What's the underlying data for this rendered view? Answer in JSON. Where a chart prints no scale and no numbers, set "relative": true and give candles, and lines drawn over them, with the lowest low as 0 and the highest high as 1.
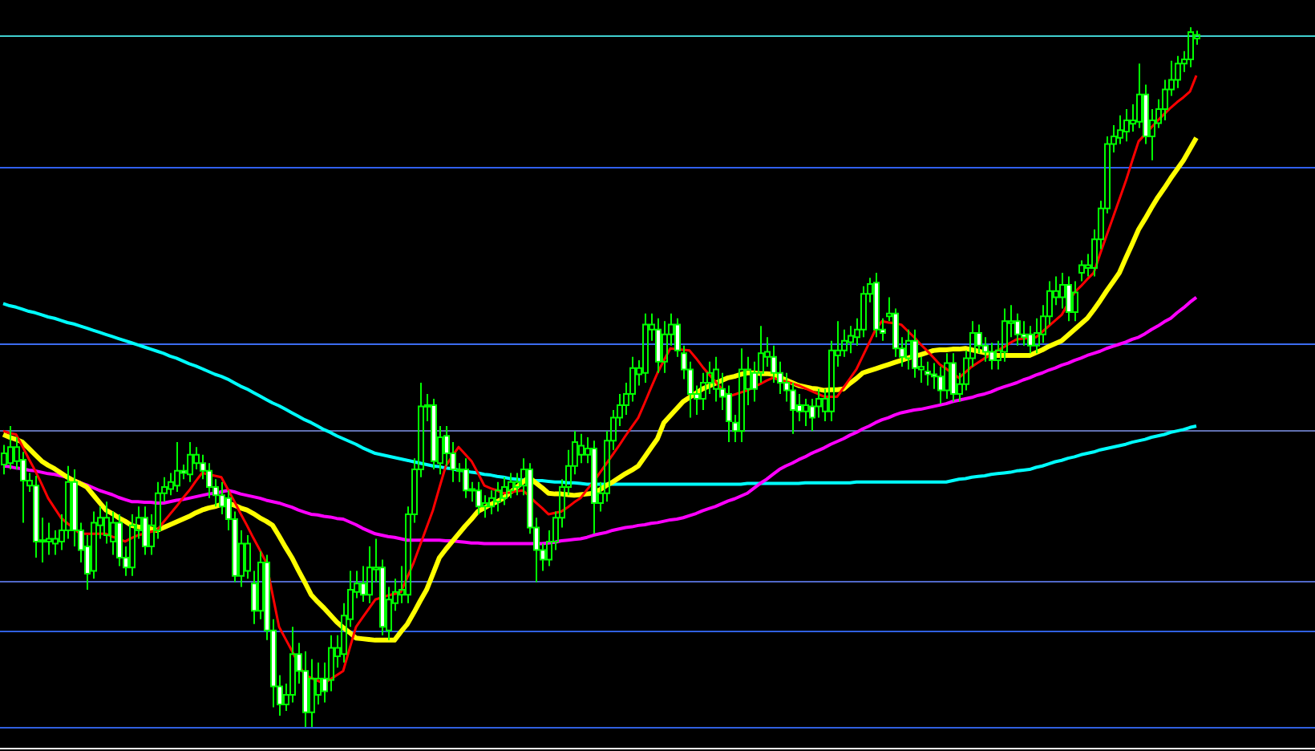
{
  "chart_data": {
    "type": "candlestick",
    "relative": true,
    "tick_labels": false,
    "color": "#00ff00",
    "categories": [
      null,
      null,
      null,
      null,
      null,
      null,
      null,
      null,
      null,
      null,
      null,
      null,
      null,
      null,
      null,
      null,
      null,
      null,
      null,
      null,
      null,
      null,
      null,
      null,
      null,
      null,
      null,
      null,
      null,
      null,
      null,
      null,
      null,
      null,
      null,
      null,
      null,
      null,
      null,
      null,
      null,
      null,
      null,
      null,
      null,
      null,
      null,
      null,
      null,
      null,
      null,
      null,
      null,
      null,
      null,
      null,
      null,
      null,
      null,
      null,
      null,
      null,
      null,
      null,
      null,
      null,
      null,
      null,
      null,
      null,
      null,
      null,
      null,
      null,
      null,
      null,
      null,
      null,
      null,
      null,
      null,
      null,
      null,
      null,
      null,
      null,
      null,
      null,
      null,
      null,
      null,
      null,
      null,
      null,
      null,
      null,
      null,
      null,
      null,
      null,
      null,
      null,
      null,
      null,
      null,
      null,
      null,
      null,
      null,
      null,
      null,
      null,
      null,
      null,
      null,
      null,
      null,
      null,
      null,
      null,
      null,
      null,
      null,
      null,
      null,
      null,
      null,
      null,
      null,
      null,
      null,
      null,
      null,
      null,
      null,
      null,
      null,
      null,
      null,
      null,
      null,
      null,
      null,
      null,
      null,
      null,
      null,
      null,
      null,
      null,
      null,
      null,
      null,
      null,
      null,
      null,
      null,
      null,
      null,
      null,
      null,
      null,
      null,
      null,
      null,
      null,
      null,
      null,
      null,
      null,
      null,
      null,
      null,
      null,
      null,
      null,
      null,
      null,
      null,
      null,
      null,
      null,
      null,
      null,
      null,
      null,
      null
    ],
    "ohlc": [
      [
        0.375,
        0.403,
        0.361,
        0.391
      ],
      [
        0.377,
        0.43,
        0.368,
        0.4
      ],
      [
        0.38,
        0.414,
        0.368,
        0.4
      ],
      [
        0.382,
        0.393,
        0.292,
        0.352
      ],
      [
        0.345,
        0.363,
        0.336,
        0.352
      ],
      [
        0.345,
        0.359,
        0.242,
        0.265
      ],
      [
        0.265,
        0.299,
        0.235,
        0.267
      ],
      [
        0.265,
        0.292,
        0.246,
        0.269
      ],
      [
        0.262,
        0.281,
        0.246,
        0.269
      ],
      [
        0.265,
        0.304,
        0.253,
        0.281
      ],
      [
        0.281,
        0.373,
        0.269,
        0.35
      ],
      [
        0.35,
        0.368,
        0.258,
        0.281
      ],
      [
        0.281,
        0.292,
        0.235,
        0.253
      ],
      [
        0.258,
        0.274,
        0.196,
        0.219
      ],
      [
        0.223,
        0.308,
        0.212,
        0.292
      ],
      [
        0.288,
        0.315,
        0.269,
        0.299
      ],
      [
        0.274,
        0.322,
        0.262,
        0.299
      ],
      [
        0.265,
        0.308,
        0.246,
        0.292
      ],
      [
        0.292,
        0.304,
        0.23,
        0.242
      ],
      [
        0.242,
        0.258,
        0.216,
        0.228
      ],
      [
        0.228,
        0.304,
        0.216,
        0.288
      ],
      [
        0.281,
        0.315,
        0.269,
        0.299
      ],
      [
        0.299,
        0.315,
        0.246,
        0.258
      ],
      [
        0.258,
        0.304,
        0.246,
        0.288
      ],
      [
        0.281,
        0.35,
        0.269,
        0.334
      ],
      [
        0.334,
        0.357,
        0.322,
        0.343
      ],
      [
        0.34,
        0.363,
        0.331,
        0.35
      ],
      [
        0.345,
        0.407,
        0.336,
        0.366
      ],
      [
        0.366,
        0.375,
        0.354,
        0.363
      ],
      [
        0.361,
        0.407,
        0.35,
        0.389
      ],
      [
        0.377,
        0.4,
        0.368,
        0.389
      ],
      [
        0.377,
        0.389,
        0.354,
        0.366
      ],
      [
        0.366,
        0.377,
        0.327,
        0.343
      ],
      [
        0.343,
        0.354,
        0.315,
        0.331
      ],
      [
        0.331,
        0.35,
        0.304,
        0.315
      ],
      [
        0.327,
        0.338,
        0.281,
        0.297
      ],
      [
        0.297,
        0.308,
        0.207,
        0.216
      ],
      [
        0.216,
        0.281,
        0.2,
        0.262
      ],
      [
        0.223,
        0.274,
        0.212,
        0.262
      ],
      [
        0.205,
        0.223,
        0.147,
        0.166
      ],
      [
        0.166,
        0.251,
        0.154,
        0.235
      ],
      [
        0.235,
        0.246,
        0.124,
        0.138
      ],
      [
        0.138,
        0.154,
        0.028,
        0.058
      ],
      [
        0.058,
        0.074,
        0.016,
        0.032
      ],
      [
        0.032,
        0.062,
        0.023,
        0.046
      ],
      [
        0.046,
        0.143,
        0.035,
        0.104
      ],
      [
        0.104,
        0.12,
        0.062,
        0.08
      ],
      [
        0.08,
        0.108,
        0,
        0.021
      ],
      [
        0.021,
        0.097,
        0,
        0.069
      ],
      [
        0.046,
        0.092,
        0.032,
        0.069
      ],
      [
        0.069,
        0.092,
        0.035,
        0.051
      ],
      [
        0.067,
        0.131,
        0.051,
        0.113
      ],
      [
        0.101,
        0.131,
        0.085,
        0.113
      ],
      [
        0.104,
        0.177,
        0.092,
        0.159
      ],
      [
        0.154,
        0.223,
        0.143,
        0.196
      ],
      [
        0.193,
        0.223,
        0.184,
        0.205
      ],
      [
        0.205,
        0.23,
        0.179,
        0.189
      ],
      [
        0.189,
        0.258,
        0.177,
        0.228
      ],
      [
        0.225,
        0.269,
        0.207,
        0.228
      ],
      [
        0.228,
        0.239,
        0.131,
        0.143
      ],
      [
        0.138,
        0.2,
        0.124,
        0.182
      ],
      [
        0.177,
        0.212,
        0.166,
        0.193
      ],
      [
        0.189,
        0.23,
        0.177,
        0.196
      ],
      [
        0.189,
        0.315,
        0.177,
        0.304
      ],
      [
        0.304,
        0.384,
        0.292,
        0.368
      ],
      [
        0.368,
        0.492,
        0.357,
        0.458
      ],
      [
        0.458,
        0.476,
        0.437,
        0.46
      ],
      [
        0.46,
        0.469,
        0.368,
        0.38
      ],
      [
        0.377,
        0.43,
        0.361,
        0.414
      ],
      [
        0.416,
        0.43,
        0.373,
        0.391
      ],
      [
        0.391,
        0.407,
        0.35,
        0.368
      ],
      [
        0.368,
        0.377,
        0.35,
        0.366
      ],
      [
        0.368,
        0.384,
        0.327,
        0.338
      ],
      [
        0.338,
        0.35,
        0.322,
        0.34
      ],
      [
        0.338,
        0.35,
        0.304,
        0.315
      ],
      [
        0.315,
        0.331,
        0.299,
        0.32
      ],
      [
        0.315,
        0.338,
        0.304,
        0.327
      ],
      [
        0.322,
        0.35,
        0.308,
        0.338
      ],
      [
        0.327,
        0.357,
        0.317,
        0.343
      ],
      [
        0.338,
        0.363,
        0.327,
        0.35
      ],
      [
        0.343,
        0.363,
        0.331,
        0.35
      ],
      [
        0.345,
        0.384,
        0.331,
        0.368
      ],
      [
        0.368,
        0.377,
        0.276,
        0.285
      ],
      [
        0.285,
        0.299,
        0.207,
        0.253
      ],
      [
        0.253,
        0.262,
        0.223,
        0.239
      ],
      [
        0.239,
        0.281,
        0.23,
        0.265
      ],
      [
        0.265,
        0.308,
        0.253,
        0.299
      ],
      [
        0.299,
        0.354,
        0.285,
        0.343
      ],
      [
        0.343,
        0.396,
        0.331,
        0.373
      ],
      [
        0.373,
        0.423,
        0.361,
        0.407
      ],
      [
        0.389,
        0.419,
        0.377,
        0.402
      ],
      [
        0.389,
        0.414,
        0.377,
        0.398
      ],
      [
        0.398,
        0.409,
        0.276,
        0.32
      ],
      [
        0.32,
        0.35,
        0.308,
        0.334
      ],
      [
        0.334,
        0.423,
        0.322,
        0.409
      ],
      [
        0.409,
        0.453,
        0.396,
        0.442
      ],
      [
        0.442,
        0.476,
        0.43,
        0.46
      ],
      [
        0.46,
        0.492,
        0.446,
        0.476
      ],
      [
        0.476,
        0.529,
        0.465,
        0.513
      ],
      [
        0.504,
        0.524,
        0.488,
        0.513
      ],
      [
        0.506,
        0.591,
        0.492,
        0.575
      ],
      [
        0.568,
        0.591,
        0.552,
        0.575
      ],
      [
        0.568,
        0.584,
        0.506,
        0.522
      ],
      [
        0.522,
        0.58,
        0.506,
        0.561
      ],
      [
        0.561,
        0.591,
        0.545,
        0.575
      ],
      [
        0.575,
        0.584,
        0.529,
        0.538
      ],
      [
        0.534,
        0.545,
        0.497,
        0.511
      ],
      [
        0.511,
        0.522,
        0.442,
        0.476
      ],
      [
        0.476,
        0.488,
        0.446,
        0.469
      ],
      [
        0.469,
        0.506,
        0.453,
        0.492
      ],
      [
        0.492,
        0.522,
        0.476,
        0.506
      ],
      [
        0.483,
        0.529,
        0.465,
        0.511
      ],
      [
        0.483,
        0.506,
        0.453,
        0.472
      ],
      [
        0.476,
        0.488,
        0.407,
        0.437
      ],
      [
        0.435,
        0.446,
        0.407,
        0.423
      ],
      [
        0.423,
        0.541,
        0.407,
        0.511
      ],
      [
        0.483,
        0.529,
        0.46,
        0.511
      ],
      [
        0.506,
        0.522,
        0.465,
        0.483
      ],
      [
        0.506,
        0.573,
        0.492,
        0.534
      ],
      [
        0.529,
        0.557,
        0.515,
        0.536
      ],
      [
        0.529,
        0.545,
        0.492,
        0.506
      ],
      [
        0.506,
        0.522,
        0.476,
        0.492
      ],
      [
        0.492,
        0.506,
        0.465,
        0.481
      ],
      [
        0.481,
        0.492,
        0.419,
        0.453
      ],
      [
        0.46,
        0.476,
        0.437,
        0.451
      ],
      [
        0.451,
        0.469,
        0.43,
        0.46
      ],
      [
        0.458,
        0.469,
        0.423,
        0.442
      ],
      [
        0.458,
        0.483,
        0.442,
        0.469
      ],
      [
        0.451,
        0.483,
        0.437,
        0.469
      ],
      [
        0.451,
        0.552,
        0.437,
        0.538
      ],
      [
        0.531,
        0.58,
        0.515,
        0.538
      ],
      [
        0.538,
        0.568,
        0.529,
        0.552
      ],
      [
        0.55,
        0.573,
        0.534,
        0.559
      ],
      [
        0.557,
        0.584,
        0.545,
        0.568
      ],
      [
        0.568,
        0.63,
        0.557,
        0.619
      ],
      [
        0.619,
        0.642,
        0.607,
        0.633
      ],
      [
        0.635,
        0.649,
        0.557,
        0.568
      ],
      [
        0.568,
        0.584,
        0.552,
        0.563
      ],
      [
        0.587,
        0.614,
        0.58,
        0.591
      ],
      [
        0.591,
        0.598,
        0.529,
        0.541
      ],
      [
        0.541,
        0.557,
        0.515,
        0.529
      ],
      [
        0.527,
        0.568,
        0.511,
        0.552
      ],
      [
        0.552,
        0.568,
        0.499,
        0.513
      ],
      [
        0.511,
        0.529,
        0.492,
        0.515
      ],
      [
        0.508,
        0.522,
        0.488,
        0.504
      ],
      [
        0.504,
        0.52,
        0.483,
        0.501
      ],
      [
        0.501,
        0.515,
        0.462,
        0.481
      ],
      [
        0.481,
        0.534,
        0.469,
        0.52
      ],
      [
        0.52,
        0.534,
        0.465,
        0.476
      ],
      [
        0.476,
        0.506,
        0.465,
        0.49
      ],
      [
        0.49,
        0.538,
        0.481,
        0.527
      ],
      [
        0.527,
        0.58,
        0.515,
        0.563
      ],
      [
        0.563,
        0.575,
        0.534,
        0.545
      ],
      [
        0.545,
        0.557,
        0.522,
        0.536
      ],
      [
        0.536,
        0.549,
        0.511,
        0.524
      ],
      [
        0.524,
        0.552,
        0.511,
        0.538
      ],
      [
        0.536,
        0.598,
        0.522,
        0.58
      ],
      [
        0.577,
        0.603,
        0.557,
        0.58
      ],
      [
        0.58,
        0.591,
        0.545,
        0.561
      ],
      [
        0.561,
        0.58,
        0.545,
        0.557
      ],
      [
        0.561,
        0.573,
        0.534,
        0.545
      ],
      [
        0.545,
        0.584,
        0.534,
        0.563
      ],
      [
        0.561,
        0.603,
        0.549,
        0.587
      ],
      [
        0.587,
        0.637,
        0.575,
        0.623
      ],
      [
        0.614,
        0.644,
        0.603,
        0.623
      ],
      [
        0.614,
        0.649,
        0.598,
        0.632
      ],
      [
        0.632,
        0.644,
        0.58,
        0.593
      ],
      [
        0.593,
        0.637,
        0.58,
        0.621
      ],
      [
        0.649,
        0.667,
        0.637,
        0.66
      ],
      [
        0.656,
        0.676,
        0.644,
        0.66
      ],
      [
        0.656,
        0.711,
        0.644,
        0.697
      ],
      [
        0.697,
        0.752,
        0.683,
        0.741
      ],
      [
        0.741,
        0.844,
        0.734,
        0.833
      ],
      [
        0.833,
        0.86,
        0.821,
        0.844
      ],
      [
        0.842,
        0.874,
        0.833,
        0.853
      ],
      [
        0.851,
        0.883,
        0.837,
        0.867
      ],
      [
        0.862,
        0.89,
        0.851,
        0.867
      ],
      [
        0.865,
        0.948,
        0.856,
        0.904
      ],
      [
        0.904,
        0.918,
        0.833,
        0.844
      ],
      [
        0.844,
        0.883,
        0.81,
        0.867
      ],
      [
        0.863,
        0.897,
        0.856,
        0.883
      ],
      [
        0.883,
        0.925,
        0.867,
        0.911
      ],
      [
        0.911,
        0.952,
        0.902,
        0.925
      ],
      [
        0.925,
        0.959,
        0.913,
        0.948
      ],
      [
        0.948,
        0.966,
        0.936,
        0.954
      ],
      [
        0.954,
        1.0,
        0.943,
        0.993
      ],
      [
        0.984,
        0.995,
        0.975,
        0.989
      ]
    ],
    "series": [
      {
        "type": "line",
        "color": "#ff0000",
        "values": [
          0.423,
          0.42,
          0.418,
          0.401,
          0.383,
          0.366,
          0.347,
          0.327,
          0.313,
          0.299,
          0.291,
          0.284,
          0.276,
          0.276,
          0.276,
          0.276,
          0.276,
          0.272,
          0.269,
          0.265,
          0.27,
          0.274,
          0.276,
          0.279,
          0.281,
          0.293,
          0.304,
          0.315,
          0.327,
          0.338,
          0.351,
          0.363,
          0.361,
          0.359,
          0.357,
          0.34,
          0.323,
          0.305,
          0.288,
          0.27,
          0.253,
          0.235,
          0.189,
          0.143,
          0.126,
          0.109,
          0.091,
          0.074,
          0.07,
          0.066,
          0.062,
          0.068,
          0.074,
          0.08,
          0.112,
          0.143,
          0.156,
          0.169,
          0.182,
          0.185,
          0.188,
          0.19,
          0.193,
          0.214,
          0.235,
          0.26,
          0.285,
          0.31,
          0.342,
          0.373,
          0.387,
          0.4,
          0.39,
          0.38,
          0.363,
          0.345,
          0.341,
          0.338,
          0.334,
          0.335,
          0.337,
          0.338,
          0.33,
          0.321,
          0.313,
          0.304,
          0.306,
          0.308,
          0.314,
          0.321,
          0.327,
          0.339,
          0.35,
          0.363,
          0.376,
          0.389,
          0.402,
          0.416,
          0.429,
          0.442,
          0.463,
          0.485,
          0.506,
          0.524,
          0.541,
          0.54,
          0.539,
          0.538,
          0.527,
          0.515,
          0.504,
          0.494,
          0.483,
          0.472,
          0.475,
          0.478,
          0.481,
          0.486,
          0.49,
          0.495,
          0.499,
          0.496,
          0.494,
          0.491,
          0.488,
          0.484,
          0.48,
          0.476,
          0.472,
          0.472,
          0.472,
          0.485,
          0.498,
          0.511,
          0.53,
          0.549,
          0.568,
          0.58,
          0.578,
          0.577,
          0.575,
          0.566,
          0.557,
          0.547,
          0.538,
          0.528,
          0.518,
          0.512,
          0.505,
          0.499,
          0.507,
          0.515,
          0.521,
          0.527,
          0.532,
          0.538,
          0.543,
          0.549,
          0.554,
          0.555,
          0.556,
          0.557,
          0.565,
          0.573,
          0.581,
          0.589,
          0.605,
          0.621,
          0.63,
          0.64,
          0.649,
          0.676,
          0.702,
          0.728,
          0.754,
          0.78,
          0.809,
          0.837,
          0.847,
          0.857,
          0.867,
          0.876,
          0.885,
          0.893,
          0.9,
          0.908,
          0.931
        ]
      },
      {
        "type": "line",
        "color": "#ffff00",
        "values": [
          0.418,
          0.414,
          0.411,
          0.407,
          0.398,
          0.389,
          0.38,
          0.374,
          0.369,
          0.363,
          0.357,
          0.352,
          0.348,
          0.343,
          0.332,
          0.321,
          0.31,
          0.305,
          0.299,
          0.294,
          0.288,
          0.286,
          0.285,
          0.283,
          0.281,
          0.285,
          0.289,
          0.293,
          0.297,
          0.301,
          0.306,
          0.31,
          0.313,
          0.315,
          0.318,
          0.32,
          0.317,
          0.313,
          0.31,
          0.305,
          0.299,
          0.294,
          0.288,
          0.273,
          0.257,
          0.242,
          0.224,
          0.207,
          0.189,
          0.179,
          0.17,
          0.16,
          0.15,
          0.142,
          0.135,
          0.127,
          0.126,
          0.125,
          0.124,
          0.124,
          0.124,
          0.124,
          0.136,
          0.147,
          0.163,
          0.18,
          0.196,
          0.219,
          0.242,
          0.254,
          0.265,
          0.276,
          0.287,
          0.297,
          0.308,
          0.313,
          0.318,
          0.322,
          0.327,
          0.335,
          0.342,
          0.35,
          0.357,
          0.349,
          0.342,
          0.334,
          0.333,
          0.333,
          0.332,
          0.331,
          0.332,
          0.333,
          0.334,
          0.339,
          0.345,
          0.35,
          0.356,
          0.362,
          0.367,
          0.373,
          0.386,
          0.399,
          0.412,
          0.435,
          0.445,
          0.455,
          0.465,
          0.471,
          0.477,
          0.483,
          0.487,
          0.491,
          0.495,
          0.499,
          0.501,
          0.504,
          0.506,
          0.506,
          0.505,
          0.505,
          0.504,
          0.5,
          0.496,
          0.492,
          0.488,
          0.486,
          0.484,
          0.483,
          0.481,
          0.482,
          0.482,
          0.483,
          0.491,
          0.498,
          0.506,
          0.509,
          0.512,
          0.515,
          0.518,
          0.521,
          0.524,
          0.527,
          0.53,
          0.532,
          0.535,
          0.538,
          0.539,
          0.539,
          0.54,
          0.54,
          0.541,
          0.539,
          0.537,
          0.535,
          0.533,
          0.531,
          0.531,
          0.531,
          0.531,
          0.531,
          0.531,
          0.535,
          0.539,
          0.544,
          0.548,
          0.552,
          0.56,
          0.568,
          0.576,
          0.584,
          0.596,
          0.609,
          0.623,
          0.636,
          0.649,
          0.67,
          0.69,
          0.711,
          0.726,
          0.742,
          0.757,
          0.77,
          0.784,
          0.797,
          0.81,
          0.826,
          0.842
        ]
      },
      {
        "type": "line",
        "color": "#ff00ff",
        "values": [
          0.373,
          0.372,
          0.37,
          0.369,
          0.367,
          0.366,
          0.364,
          0.362,
          0.361,
          0.359,
          0.357,
          0.353,
          0.349,
          0.346,
          0.342,
          0.338,
          0.335,
          0.332,
          0.328,
          0.325,
          0.322,
          0.322,
          0.321,
          0.321,
          0.32,
          0.32,
          0.322,
          0.324,
          0.325,
          0.327,
          0.329,
          0.331,
          0.333,
          0.334,
          0.336,
          0.338,
          0.336,
          0.333,
          0.331,
          0.329,
          0.327,
          0.324,
          0.322,
          0.32,
          0.317,
          0.314,
          0.31,
          0.307,
          0.304,
          0.303,
          0.301,
          0.3,
          0.298,
          0.297,
          0.293,
          0.289,
          0.284,
          0.28,
          0.276,
          0.274,
          0.272,
          0.271,
          0.269,
          0.267,
          0.267,
          0.267,
          0.267,
          0.267,
          0.267,
          0.266,
          0.266,
          0.265,
          0.264,
          0.263,
          0.263,
          0.262,
          0.262,
          0.262,
          0.262,
          0.262,
          0.262,
          0.262,
          0.262,
          0.262,
          0.262,
          0.263,
          0.264,
          0.266,
          0.267,
          0.268,
          0.269,
          0.271,
          0.274,
          0.276,
          0.278,
          0.281,
          0.283,
          0.285,
          0.286,
          0.288,
          0.289,
          0.291,
          0.292,
          0.294,
          0.296,
          0.297,
          0.299,
          0.302,
          0.305,
          0.309,
          0.312,
          0.315,
          0.319,
          0.323,
          0.326,
          0.33,
          0.334,
          0.341,
          0.348,
          0.354,
          0.361,
          0.368,
          0.373,
          0.377,
          0.382,
          0.386,
          0.391,
          0.395,
          0.399,
          0.404,
          0.408,
          0.412,
          0.417,
          0.421,
          0.426,
          0.43,
          0.435,
          0.439,
          0.442,
          0.446,
          0.449,
          0.451,
          0.453,
          0.454,
          0.456,
          0.458,
          0.46,
          0.462,
          0.465,
          0.467,
          0.469,
          0.471,
          0.474,
          0.476,
          0.479,
          0.483,
          0.486,
          0.489,
          0.492,
          0.496,
          0.499,
          0.503,
          0.506,
          0.51,
          0.513,
          0.517,
          0.52,
          0.524,
          0.527,
          0.531,
          0.534,
          0.537,
          0.541,
          0.544,
          0.547,
          0.55,
          0.554,
          0.557,
          0.562,
          0.568,
          0.573,
          0.579,
          0.584,
          0.592,
          0.599,
          0.607,
          0.614
        ]
      },
      {
        "type": "line",
        "color": "#00ffff",
        "values": [
          0.605,
          0.602,
          0.6,
          0.597,
          0.594,
          0.592,
          0.589,
          0.586,
          0.584,
          0.581,
          0.578,
          0.576,
          0.573,
          0.57,
          0.567,
          0.564,
          0.561,
          0.558,
          0.555,
          0.552,
          0.549,
          0.546,
          0.543,
          0.54,
          0.537,
          0.534,
          0.53,
          0.527,
          0.523,
          0.519,
          0.516,
          0.512,
          0.508,
          0.504,
          0.501,
          0.497,
          0.492,
          0.487,
          0.483,
          0.478,
          0.473,
          0.468,
          0.463,
          0.459,
          0.454,
          0.449,
          0.444,
          0.439,
          0.435,
          0.43,
          0.425,
          0.421,
          0.416,
          0.412,
          0.408,
          0.404,
          0.399,
          0.395,
          0.391,
          0.389,
          0.387,
          0.385,
          0.383,
          0.381,
          0.379,
          0.377,
          0.375,
          0.373,
          0.372,
          0.37,
          0.369,
          0.367,
          0.366,
          0.364,
          0.363,
          0.361,
          0.36,
          0.358,
          0.357,
          0.355,
          0.354,
          0.353,
          0.353,
          0.352,
          0.352,
          0.351,
          0.35,
          0.35,
          0.349,
          0.349,
          0.348,
          0.347,
          0.347,
          0.347,
          0.347,
          0.347,
          0.347,
          0.347,
          0.347,
          0.347,
          0.347,
          0.347,
          0.347,
          0.347,
          0.347,
          0.347,
          0.347,
          0.347,
          0.347,
          0.347,
          0.347,
          0.347,
          0.347,
          0.347,
          0.347,
          0.347,
          0.348,
          0.348,
          0.348,
          0.348,
          0.348,
          0.348,
          0.348,
          0.348,
          0.348,
          0.349,
          0.349,
          0.349,
          0.349,
          0.349,
          0.349,
          0.349,
          0.349,
          0.35,
          0.35,
          0.35,
          0.35,
          0.35,
          0.35,
          0.35,
          0.35,
          0.35,
          0.35,
          0.35,
          0.35,
          0.35,
          0.35,
          0.35,
          0.352,
          0.354,
          0.355,
          0.357,
          0.358,
          0.359,
          0.361,
          0.362,
          0.363,
          0.364,
          0.366,
          0.367,
          0.368,
          0.371,
          0.373,
          0.376,
          0.379,
          0.381,
          0.384,
          0.386,
          0.389,
          0.391,
          0.393,
          0.396,
          0.398,
          0.4,
          0.402,
          0.404,
          0.407,
          0.409,
          0.411,
          0.414,
          0.416,
          0.418,
          0.421,
          0.423,
          0.425,
          0.428,
          0.43
        ]
      }
    ],
    "ref_lines": [
      {
        "axis": "y",
        "value": 0.989,
        "color": "#40d0d0"
      },
      {
        "axis": "y",
        "value": 0.8,
        "color": "#3060f0"
      },
      {
        "axis": "y",
        "value": 0.549,
        "color": "#3c6cf0"
      },
      {
        "axis": "y",
        "value": 0.425,
        "color": "#6070b0"
      },
      {
        "axis": "y",
        "value": 0.209,
        "color": "#5068c8"
      },
      {
        "axis": "y",
        "value": 0.138,
        "color": "#3060e0"
      },
      {
        "axis": "y",
        "value": 0,
        "color": "#3060e0"
      }
    ]
  }
}
